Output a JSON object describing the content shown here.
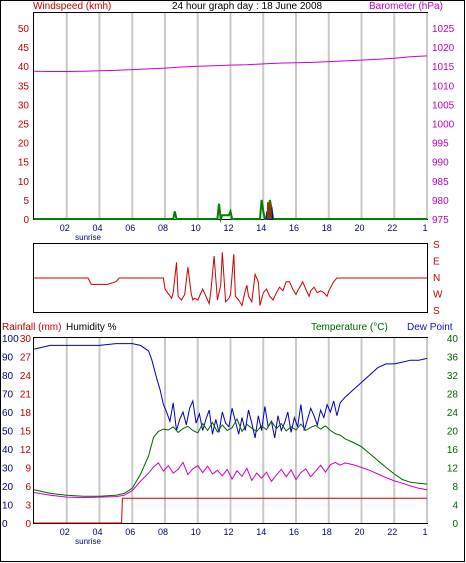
{
  "colors": {
    "wind": "#008000",
    "gust": "#0000cc",
    "wind_brown": "#804000",
    "barometer": "#cc00cc",
    "direction": "#cc0000",
    "humidity": "#0000bb",
    "temperature": "#006400",
    "dewpoint": "#cc00cc",
    "rain": "#cc0000",
    "grid": "#c8c8c8"
  },
  "chart_data": [
    {
      "type": "line",
      "panel": "wind_barometer",
      "title": "24 hour graph day : 18 June 2008",
      "ylabel": "Windspeed (kmh)",
      "ylabel_right": "Barometer (hPa)",
      "ylim": [
        0,
        50
      ],
      "ylim_right": [
        975,
        1025
      ],
      "yticks": [
        "0",
        "5",
        "10",
        "15",
        "20",
        "25",
        "30",
        "35",
        "40",
        "45",
        "50"
      ],
      "yticks_right": [
        "975",
        "980",
        "985",
        "990",
        "995",
        "1000",
        "1005",
        "1010",
        "1015",
        "1020",
        "1025"
      ],
      "x_ticks": [
        "02",
        "04",
        "06",
        "08",
        "10",
        "12",
        "14",
        "16",
        "18",
        "20",
        "22",
        "1"
      ],
      "sunrise_label": "sunrise",
      "series": [
        {
          "key": "barometer",
          "x": [
            0,
            1,
            2,
            3,
            4,
            5,
            6,
            7,
            8,
            9,
            10,
            11,
            12,
            13,
            14,
            15,
            16,
            17,
            18,
            19,
            20,
            21,
            22,
            23,
            24
          ],
          "values": [
            1013.7,
            1013.6,
            1013.6,
            1013.7,
            1013.8,
            1013.9,
            1014.1,
            1014.3,
            1014.5,
            1014.8,
            1015.0,
            1015.1,
            1015.3,
            1015.4,
            1015.6,
            1015.8,
            1015.9,
            1016.0,
            1016.2,
            1016.4,
            1016.6,
            1016.8,
            1017.1,
            1017.5,
            1017.7
          ]
        },
        {
          "key": "wind_speed",
          "x": [
            0,
            8.5,
            8.6,
            8.7,
            11.2,
            11.3,
            11.4,
            11.5,
            11.9,
            12.0,
            12.1,
            13.8,
            13.9,
            14.0,
            14.1,
            14.3,
            14.4,
            14.5,
            14.6,
            24
          ],
          "values": [
            0,
            0,
            2,
            0,
            0,
            4,
            0,
            1,
            1,
            2,
            0,
            0,
            5,
            2,
            0,
            0,
            5,
            3,
            0,
            0
          ]
        },
        {
          "key": "wind_gust",
          "x": [
            14.2,
            14.25,
            14.3,
            14.45,
            14.5,
            14.55,
            14.6
          ],
          "values": [
            0,
            2,
            0,
            0,
            3,
            0,
            0
          ]
        },
        {
          "key": "wind_brown",
          "x": [
            14.3,
            14.32,
            14.35,
            14.4,
            14.45
          ],
          "values": [
            0,
            4,
            4,
            4,
            0
          ]
        }
      ]
    },
    {
      "type": "line",
      "panel": "wind_direction",
      "yticks": [
        "S",
        "E",
        "N",
        "W",
        "S"
      ],
      "series": [
        {
          "key": "direction",
          "x": [
            0,
            3.3,
            3.5,
            4.5,
            5.0,
            5.2,
            7.9,
            8.0,
            8.4,
            8.5,
            8.7,
            8.8,
            9.0,
            9.2,
            9.4,
            9.6,
            9.7,
            9.8,
            10.0,
            10.3,
            10.5,
            10.7,
            10.8,
            11.0,
            11.2,
            11.4,
            11.5,
            11.7,
            11.9,
            12.0,
            12.2,
            12.3,
            12.5,
            12.7,
            12.9,
            13.0,
            13.1,
            13.3,
            13.5,
            13.7,
            13.8,
            14.0,
            14.2,
            14.4,
            14.6,
            14.8,
            15.0,
            15.2,
            15.4,
            15.6,
            15.8,
            16.0,
            16.1,
            16.3,
            16.4,
            16.6,
            16.8,
            16.9,
            17.1,
            17.3,
            17.5,
            17.7,
            17.9,
            18.0,
            18.3,
            18.5,
            24
          ],
          "values": [
            180,
            180,
            215,
            215,
            200,
            180,
            180,
            240,
            290,
            260,
            95,
            280,
            300,
            270,
            120,
            265,
            300,
            290,
            300,
            240,
            280,
            320,
            250,
            60,
            300,
            220,
            40,
            310,
            290,
            270,
            50,
            280,
            300,
            330,
            250,
            220,
            280,
            310,
            160,
            200,
            330,
            260,
            240,
            280,
            300,
            260,
            230,
            250,
            200,
            200,
            240,
            270,
            250,
            220,
            200,
            240,
            280,
            250,
            230,
            260,
            250,
            260,
            280,
            250,
            200,
            180,
            180
          ]
        }
      ]
    },
    {
      "type": "line",
      "panel": "temp_humidity_rain",
      "ylabel": "Rainfall (mm)",
      "ylabel2": "Humidity %",
      "ylabel_right": "Temperature (°C)",
      "ylabel_right2": "Dew Point",
      "ylim": [
        0,
        100
      ],
      "ylim_rain": [
        0,
        30
      ],
      "ylim_right": [
        0,
        40
      ],
      "yticks_hum": [
        "0",
        "10",
        "20",
        "30",
        "40",
        "50",
        "60",
        "70",
        "80",
        "90",
        "100"
      ],
      "yticks_rain": [
        "0",
        "3",
        "6",
        "9",
        "12",
        "15",
        "18",
        "21",
        "24",
        "27",
        "30"
      ],
      "yticks_right": [
        "0",
        "4",
        "8",
        "12",
        "16",
        "20",
        "24",
        "28",
        "32",
        "36",
        "40"
      ],
      "x_ticks": [
        "02",
        "04",
        "06",
        "08",
        "10",
        "12",
        "14",
        "16",
        "18",
        "20",
        "22",
        "1"
      ],
      "sunrise_label": "sunrise",
      "series": [
        {
          "key": "humidity",
          "x": [
            0,
            0.5,
            1,
            2,
            3,
            4,
            5,
            6,
            6.5,
            7,
            7.2,
            7.5,
            7.7,
            7.9,
            8.1,
            8.3,
            8.5,
            8.7,
            8.9,
            9.1,
            9.3,
            9.5,
            9.7,
            9.9,
            10.1,
            10.3,
            10.5,
            10.7,
            10.9,
            11.1,
            11.3,
            11.5,
            11.7,
            11.9,
            12.1,
            12.3,
            12.5,
            12.7,
            12.9,
            13.1,
            13.3,
            13.5,
            13.7,
            13.9,
            14.1,
            14.3,
            14.5,
            14.7,
            14.9,
            15.1,
            15.3,
            15.5,
            15.7,
            15.9,
            16.1,
            16.3,
            16.5,
            16.7,
            16.9,
            17.1,
            17.3,
            17.5,
            17.7,
            17.9,
            18.1,
            18.3,
            18.5,
            18.7,
            19,
            19.5,
            20,
            20.5,
            21,
            21.5,
            22,
            22.5,
            23,
            23.5,
            24
          ],
          "values": [
            94,
            95,
            96,
            96,
            96,
            96,
            97,
            97,
            96,
            93,
            88,
            78,
            72,
            64,
            60,
            55,
            65,
            50,
            56,
            60,
            53,
            62,
            66,
            54,
            59,
            50,
            56,
            61,
            48,
            56,
            49,
            60,
            54,
            52,
            62,
            55,
            48,
            57,
            50,
            61,
            54,
            46,
            58,
            50,
            63,
            52,
            55,
            46,
            58,
            50,
            54,
            60,
            49,
            57,
            52,
            64,
            50,
            56,
            62,
            58,
            53,
            61,
            57,
            64,
            60,
            66,
            58,
            65,
            68,
            72,
            76,
            80,
            84,
            86,
            86,
            87,
            88,
            88,
            89
          ]
        },
        {
          "key": "temperature",
          "x": [
            0,
            1,
            2,
            3,
            4,
            5,
            5.5,
            6,
            6.5,
            7,
            7.3,
            7.6,
            7.9,
            8.2,
            8.5,
            8.8,
            9.1,
            9.4,
            9.7,
            10,
            10.3,
            10.6,
            10.9,
            11.2,
            11.5,
            11.8,
            12.1,
            12.4,
            12.7,
            13,
            13.3,
            13.6,
            13.9,
            14.2,
            14.5,
            14.8,
            15.1,
            15.4,
            15.7,
            16,
            16.3,
            16.6,
            16.9,
            17.2,
            17.5,
            17.8,
            18.1,
            18.4,
            18.7,
            19,
            19.5,
            20,
            20.5,
            21,
            21.5,
            22,
            22.5,
            23,
            23.5,
            24
          ],
          "values": [
            7.2,
            6.4,
            6.0,
            5.8,
            5.8,
            6.0,
            6.4,
            7.5,
            10.5,
            14.5,
            18.5,
            19.8,
            20.3,
            20.1,
            20.8,
            19.6,
            20.4,
            20.9,
            20.0,
            19.5,
            21.5,
            20.0,
            21.7,
            19.7,
            21.2,
            20.0,
            20.6,
            22.5,
            19.8,
            21.3,
            20.5,
            19.8,
            21.0,
            20.2,
            22.0,
            20.4,
            21.5,
            19.9,
            20.8,
            20.1,
            21.4,
            20.0,
            20.7,
            21.1,
            20.3,
            21.0,
            20.0,
            19.3,
            19.0,
            18.2,
            17.4,
            16.5,
            15.0,
            13.5,
            12.0,
            10.6,
            9.4,
            8.8,
            8.6,
            8.4
          ]
        },
        {
          "key": "dewpoint",
          "x": [
            0,
            1,
            2,
            3,
            4,
            5,
            5.5,
            6,
            6.5,
            7,
            7.3,
            7.6,
            7.9,
            8.2,
            8.5,
            8.8,
            9.1,
            9.4,
            9.7,
            10,
            10.3,
            10.6,
            10.9,
            11.2,
            11.5,
            11.8,
            12.1,
            12.4,
            12.7,
            13,
            13.3,
            13.6,
            13.9,
            14.2,
            14.5,
            14.8,
            15.1,
            15.4,
            15.7,
            16,
            16.3,
            16.6,
            16.9,
            17.2,
            17.5,
            17.8,
            18.1,
            18.4,
            18.7,
            19,
            19.5,
            20,
            20.5,
            21,
            21.5,
            22,
            22.5,
            23,
            23.5,
            24
          ],
          "values": [
            6.6,
            6.0,
            5.6,
            5.5,
            5.6,
            5.7,
            6.0,
            7.0,
            9.0,
            10.8,
            12.1,
            13.0,
            11.2,
            12.4,
            10.8,
            11.6,
            13.1,
            10.5,
            11.7,
            12.4,
            10.9,
            12.3,
            10.6,
            11.4,
            10.2,
            11.6,
            9.5,
            11.3,
            10.1,
            11.8,
            9.2,
            10.8,
            9.7,
            11.0,
            9.0,
            10.4,
            11.6,
            10.0,
            11.5,
            9.4,
            10.9,
            11.7,
            10.0,
            11.2,
            12.5,
            11.0,
            12.6,
            13.1,
            12.5,
            13.0,
            12.6,
            12.0,
            11.4,
            10.6,
            9.8,
            9.1,
            8.6,
            8.0,
            7.5,
            7.2
          ]
        },
        {
          "key": "rainfall",
          "x": [
            0,
            5.35,
            5.4,
            24
          ],
          "values": [
            0,
            0,
            4.0,
            4.0
          ]
        }
      ]
    }
  ]
}
